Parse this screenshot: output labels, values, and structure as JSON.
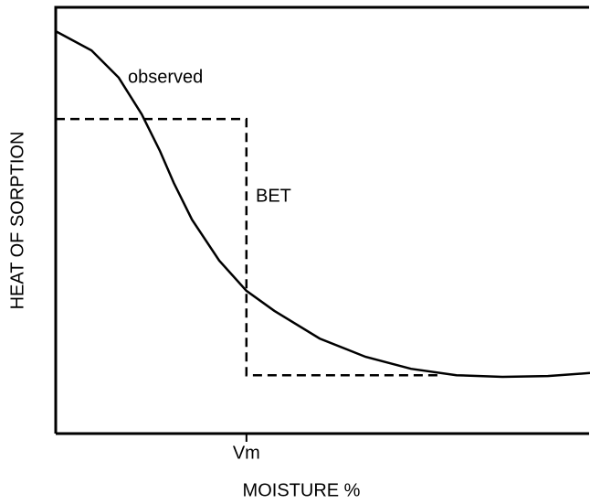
{
  "chart_data": {
    "type": "line",
    "xlabel": "MOISTURE %",
    "ylabel": "HEAT OF SORPTION",
    "xlim": [
      0,
      100
    ],
    "ylim": [
      0,
      100
    ],
    "xticks": [
      {
        "value": 35.7,
        "label": "Vm"
      }
    ],
    "series": [
      {
        "name": "observed",
        "color": "#000000",
        "dashed": false,
        "x": [
          0,
          6.7,
          11.8,
          16.1,
          19.5,
          22.1,
          25.5,
          30.6,
          35.7,
          40.9,
          49.4,
          58.0,
          66.5,
          75.0,
          83.6,
          92.1,
          100
        ],
        "values": [
          94.4,
          89.9,
          83.5,
          74.9,
          66.3,
          58.8,
          50.2,
          40.6,
          33.5,
          28.8,
          22.3,
          18.0,
          15.2,
          13.7,
          13.3,
          13.5,
          14.2
        ]
      },
      {
        "name": "BET",
        "color": "#000000",
        "dashed": true,
        "x": [
          0,
          35.7,
          35.7,
          71.6
        ],
        "values": [
          73.8,
          73.8,
          13.7,
          13.7
        ]
      }
    ]
  }
}
